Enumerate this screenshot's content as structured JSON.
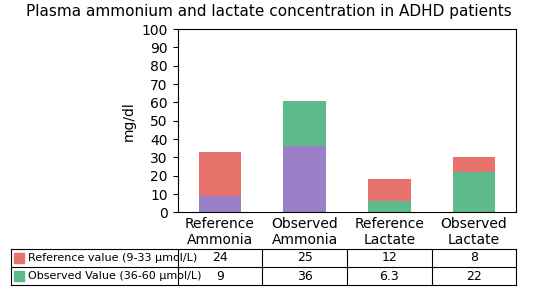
{
  "chart_data": {
    "type": "bar",
    "title": "Plasma ammonium and lactate concentration in ADHD patients",
    "categories": [
      "Reference\nAmmonia",
      "Observed\nAmmonia",
      "Reference\nLactate",
      "Observed\nLactate"
    ],
    "ylabel": "mg/dl",
    "stacked": true,
    "series": [
      {
        "name": "Observed Value (36-60 μmol/L)",
        "color": "#5dba8a",
        "colors": [
          "#9b7fc7",
          "#9b7fc7",
          "#5dba8a",
          "#5dba8a"
        ],
        "values": [
          9,
          36,
          6.3,
          22
        ]
      },
      {
        "name": "Reference value (9-33 μmol/L)",
        "color": "#e8736c",
        "colors": [
          "#e8736c",
          "#5dba8a",
          "#e8736c",
          "#e8736c"
        ],
        "values": [
          24,
          25,
          12,
          8
        ]
      }
    ],
    "ylim": [
      0,
      100
    ],
    "yticks": [
      0,
      10,
      20,
      30,
      40,
      50,
      60,
      70,
      80,
      90,
      100
    ]
  }
}
